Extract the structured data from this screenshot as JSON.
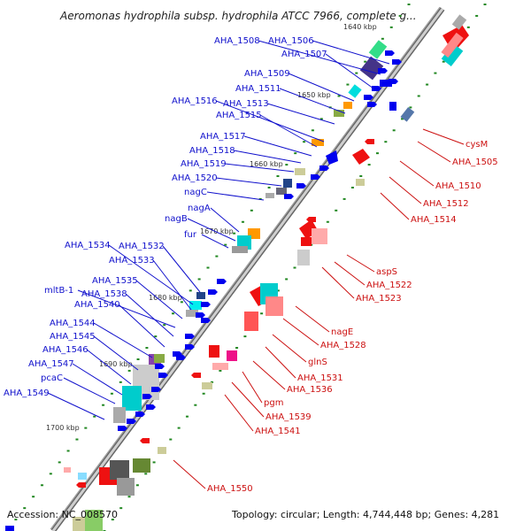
{
  "title": "Aeromonas hydrophila subsp. hydrophila ATCC 7966, complete g...",
  "footer": {
    "accession": "Accession: NC_008570",
    "topology": "Topology: circular; Length: 4,744,448 bp; Genes: 4,281"
  },
  "scale_labels": [
    "1640 kbp",
    "1650 kbp",
    "1660 kbp",
    "1670 kbp",
    "1680 kbp",
    "1690 kbp",
    "1700 kbp"
  ],
  "genes_forward": [
    "AHA_1508",
    "AHA_1506",
    "AHA_1507",
    "AHA_1509",
    "AHA_1511",
    "AHA_1516",
    "AHA_1513",
    "AHA_1515",
    "AHA_1517",
    "AHA_1518",
    "AHA_1519",
    "AHA_1520",
    "nagC",
    "nagA",
    "nagB",
    "fur",
    "AHA_1534",
    "AHA_1532",
    "AHA_1533",
    "AHA_1535",
    "mltB-1",
    "AHA_1538",
    "AHA_1540",
    "AHA_1544",
    "AHA_1545",
    "AHA_1546",
    "AHA_1547",
    "pcaC",
    "AHA_1549"
  ],
  "genes_reverse": [
    "cysM",
    "AHA_1505",
    "AHA_1510",
    "AHA_1512",
    "AHA_1514",
    "aspS",
    "AHA_1522",
    "AHA_1523",
    "nagE",
    "AHA_1528",
    "glnS",
    "AHA_1531",
    "AHA_1536",
    "pgm",
    "AHA_1539",
    "AHA_1541",
    "AHA_1550"
  ],
  "colors": {
    "forward_label": "#1010cc",
    "reverse_label": "#cc1010",
    "forward_cds": "#0000ee",
    "reverse_cds": "#ee1111",
    "backbone": "#888888",
    "tick": "#228822"
  }
}
